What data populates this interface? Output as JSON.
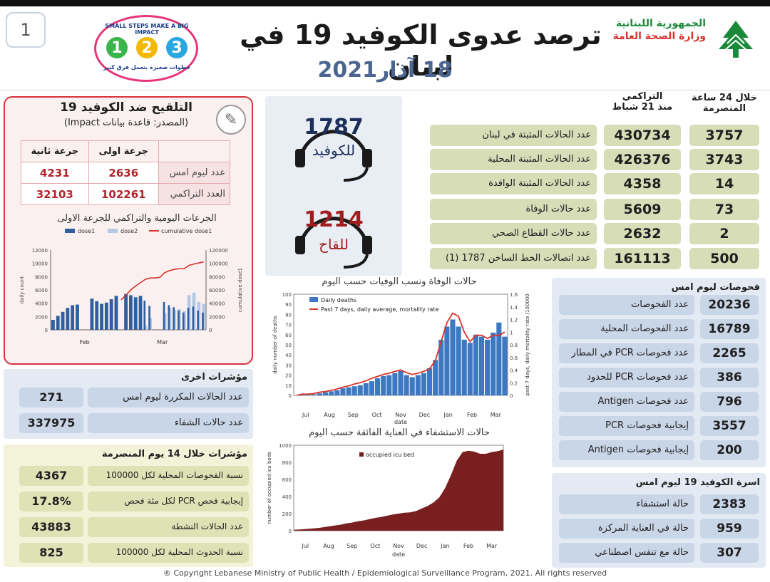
{
  "header": {
    "page_number": "1",
    "title": "ترصد عدوى الكوفيد 19 في لبنان",
    "date": "18 آذار2021",
    "ministry_line1": "الجمهورية اللبنانية",
    "ministry_line2": "وزارة الصحة العامة",
    "campaign_top": "SMALL STEPS MAKE A BIG IMPACT",
    "campaign_bottom": "خطوات صغيرة بتعمل فرق كبير",
    "campaign_steps": [
      "1",
      "2",
      "3"
    ]
  },
  "colors": {
    "vax_border": "#d9323b",
    "stat_green": "#d6ddb7",
    "panel_blue": "#e3eaf3",
    "deaths_bar": "#3d78c2",
    "mortality_line": "#d9322b",
    "icu_fill": "#7a1f1f"
  },
  "vaccination": {
    "title": "التلقيح ضد الكوفيد 19",
    "source": "(المصدر: قاعدة بيانات Impact)",
    "icon": "syringe-icon",
    "col_dose2": "جرعة ثانية",
    "col_dose1": "جرعة اولى",
    "rows": [
      {
        "label": "عدد ليوم امس",
        "dose1": "2636",
        "dose2": "4231"
      },
      {
        "label": "العدد التراكمي",
        "dose1": "102261",
        "dose2": "32103"
      }
    ],
    "chart_title": "الجرعات اليومية والتراكمي للجرعة الاولى"
  },
  "hotline": {
    "calls": "1787",
    "calls_label": "للكوفيد",
    "vaccine": "1214",
    "vaccine_label": "للقاح",
    "icon": "headset-icon"
  },
  "stats": {
    "col_24h": "خلال 24 ساعة المنصرمة",
    "col_cum_line1": "التراكمي",
    "col_cum_line2": "منذ 21 شباط",
    "rows": [
      {
        "label": "عدد الحالات المثبتة في لبنان",
        "cumulative": "430734",
        "last24": "3757"
      },
      {
        "label": "عدد الحالات المثبتة المحلية",
        "cumulative": "426376",
        "last24": "3743"
      },
      {
        "label": "عدد الحالات المثبتة الوافدة",
        "cumulative": "4358",
        "last24": "14"
      },
      {
        "label": "عدد حالات الوفاة",
        "cumulative": "5609",
        "last24": "73"
      },
      {
        "label": "عدد حالات القطاع الصحي",
        "cumulative": "2632",
        "last24": "2"
      },
      {
        "label": "عدد اتصالات الخط الساخن 1787 (1)",
        "cumulative": "161113",
        "last24": "500"
      }
    ]
  },
  "tests": {
    "title": "فحوصات ليوم امس",
    "rows": [
      {
        "label": "عدد الفحوصات",
        "value": "20236"
      },
      {
        "label": "عدد الفحوصات المحلية",
        "value": "16789"
      },
      {
        "label": "عدد فحوصات PCR في المطار",
        "value": "2265"
      },
      {
        "label": "عدد فحوصات PCR للحدود",
        "value": "386"
      },
      {
        "label": "عدد فحوصات Antigen",
        "value": "796"
      },
      {
        "label": "إيجابية فحوصات PCR",
        "value": "3557"
      },
      {
        "label": "إيجابية فحوصات Antigen",
        "value": "200"
      }
    ]
  },
  "beds": {
    "title": "اسرة الكوفيد 19 ليوم امس",
    "rows": [
      {
        "label": "حالة استشفاء",
        "value": "2383"
      },
      {
        "label": "حالة في العناية المركزة",
        "value": "959"
      },
      {
        "label": "حالة مع تنفس اصطناعي",
        "value": "307"
      }
    ]
  },
  "other": {
    "title": "مؤشرات اخرى",
    "rows": [
      {
        "label": "عدد الحالات المكررة ليوم امس",
        "value": "271"
      },
      {
        "label": "عدد حالات الشفاء",
        "value": "337975"
      }
    ]
  },
  "fourteen": {
    "title": "مؤشرات خلال 14 يوم المنصرمة",
    "rows": [
      {
        "label": "نسبة الفحوصات المحلية لكل 100000",
        "value": "4367"
      },
      {
        "label": "إيجابية فحص PCR لكل مئة فحص",
        "value": "17.8%"
      },
      {
        "label": "عدد الحالات النشطة",
        "value": "43883"
      },
      {
        "label": "نسبة الحدوث المحلية لكل 100000",
        "value": "825"
      }
    ]
  },
  "footer": "® Copyright Lebanese Ministry of Public Health / Epidemiological Surveillance Program, 2021. All rights reserved",
  "chart_data": [
    {
      "type": "bar",
      "title": "الجرعات اليومية والتراكمي للجرعة الاولى",
      "ylabel": "daily count",
      "y2label": "cumulative dose1",
      "ylim": [
        0,
        12000
      ],
      "y2lim": [
        0,
        120000
      ],
      "yticks": [
        "0",
        "2000",
        "4000",
        "6000",
        "8000",
        "10000",
        "12000"
      ],
      "y2ticks": [
        "0",
        "20000",
        "40000",
        "60000",
        "80000",
        "100000",
        "120000"
      ],
      "month_labels": [
        "Feb",
        "Mar"
      ],
      "series": [
        {
          "name": "dose1",
          "values": [
            1500,
            2100,
            2700,
            3300,
            3700,
            3800,
            0,
            0,
            4700,
            4300,
            3900,
            4100,
            4600,
            5100,
            0,
            5400,
            5200,
            4900,
            5100,
            4400,
            3600,
            0,
            0,
            4200,
            3700,
            3400,
            2900,
            2600,
            3300,
            3500,
            2900,
            2600
          ]
        },
        {
          "name": "dose2",
          "values": [
            0,
            0,
            0,
            0,
            0,
            0,
            0,
            0,
            0,
            0,
            0,
            0,
            0,
            0,
            0,
            0,
            0,
            0,
            0,
            600,
            1800,
            0,
            0,
            2500,
            3300,
            3000,
            3100,
            2800,
            5200,
            5600,
            4200,
            3900
          ]
        },
        {
          "name": "cumulative dose1",
          "values": [
            null,
            null,
            null,
            null,
            null,
            null,
            null,
            null,
            null,
            null,
            null,
            null,
            null,
            null,
            45000,
            52000,
            60000,
            66000,
            71000,
            76000,
            78000,
            78000,
            79000,
            86000,
            89000,
            91000,
            92000,
            92000,
            97000,
            99000,
            100500,
            102261
          ]
        }
      ]
    },
    {
      "type": "bar",
      "title": "حالات الوفاة ونسب الوفيات حسب اليوم",
      "ylabel": "daily number of deaths",
      "y2label": "past 7 days, daily mortality rate /100000",
      "xlabel": "date",
      "ylim": [
        0,
        100
      ],
      "y2lim": [
        0,
        1.6
      ],
      "yticks": [
        "0",
        "10",
        "20",
        "30",
        "40",
        "50",
        "60",
        "70",
        "80",
        "90",
        "100"
      ],
      "y2ticks": [
        "0",
        "0.2",
        "0.4",
        "0.6",
        "0.8",
        "1",
        "1.2",
        "1.4",
        "1.6"
      ],
      "month_labels": [
        "Jul",
        "Aug",
        "Sep",
        "Oct",
        "Nov",
        "Dec",
        "Jan",
        "Feb",
        "Mar"
      ],
      "series": [
        {
          "name": "Daily deaths",
          "weekly_values": [
            0,
            1,
            1,
            1,
            2,
            3,
            4,
            5,
            7,
            8,
            9,
            10,
            12,
            14,
            17,
            19,
            20,
            22,
            24,
            20,
            18,
            20,
            22,
            27,
            35,
            55,
            68,
            75,
            68,
            55,
            52,
            60,
            58,
            55,
            62,
            72,
            58
          ]
        },
        {
          "name": "Past 7 days, daily average, mortality rate",
          "weekly_values": [
            0,
            0.02,
            0.02,
            0.03,
            0.05,
            0.06,
            0.08,
            0.1,
            0.13,
            0.15,
            0.18,
            0.2,
            0.23,
            0.27,
            0.3,
            0.33,
            0.35,
            0.38,
            0.4,
            0.36,
            0.33,
            0.35,
            0.38,
            0.42,
            0.55,
            0.85,
            1.15,
            1.3,
            1.25,
            1.0,
            0.85,
            0.95,
            0.95,
            0.9,
            0.95,
            0.95,
            1.0
          ]
        }
      ]
    },
    {
      "type": "area",
      "title": "حالات الاستشفاء في العناية الفائقة حسب اليوم",
      "ylabel": "number of occupied icu beds",
      "xlabel": "date",
      "ylim": [
        0,
        1000
      ],
      "yticks": [
        "0",
        "200",
        "400",
        "600",
        "800",
        "1000"
      ],
      "month_labels": [
        "Jul",
        "Aug",
        "Sep",
        "Oct",
        "Nov",
        "Dec",
        "Jan",
        "Feb",
        "Mar"
      ],
      "series": [
        {
          "name": "occupied icu bed",
          "weekly_values": [
            10,
            15,
            20,
            25,
            30,
            40,
            50,
            60,
            70,
            85,
            95,
            110,
            120,
            135,
            150,
            160,
            175,
            190,
            200,
            210,
            215,
            230,
            260,
            290,
            330,
            390,
            500,
            650,
            820,
            920,
            935,
            925,
            900,
            900,
            920,
            930,
            950
          ]
        }
      ]
    }
  ]
}
